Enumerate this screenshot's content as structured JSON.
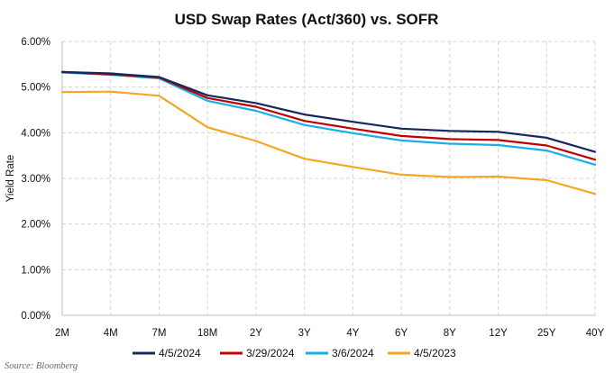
{
  "source_note": "Source: Bloomberg",
  "chart_data": {
    "type": "line",
    "title": "USD Swap Rates (Act/360) vs. SOFR",
    "xlabel": "",
    "ylabel": "Yield Rate",
    "categories": [
      "2M",
      "4M",
      "7M",
      "18M",
      "2Y",
      "3Y",
      "4Y",
      "6Y",
      "8Y",
      "12Y",
      "25Y",
      "40Y"
    ],
    "ylim": [
      0,
      6
    ],
    "yticks": [
      0,
      1,
      2,
      3,
      4,
      5,
      6
    ],
    "ytick_labels": [
      "0.00%",
      "1.00%",
      "2.00%",
      "3.00%",
      "4.00%",
      "5.00%",
      "6.00%"
    ],
    "grid": true,
    "legend_position": "bottom",
    "series": [
      {
        "name": "4/5/2024",
        "color": "#14285a",
        "values": [
          5.33,
          5.3,
          5.22,
          4.82,
          4.65,
          4.4,
          4.24,
          4.09,
          4.04,
          4.02,
          3.89,
          3.58
        ]
      },
      {
        "name": "3/29/2024",
        "color": "#c00000",
        "values": [
          5.33,
          5.28,
          5.21,
          4.76,
          4.57,
          4.26,
          4.09,
          3.93,
          3.86,
          3.84,
          3.72,
          3.41
        ]
      },
      {
        "name": "3/6/2024",
        "color": "#1aaee6",
        "values": [
          5.32,
          5.27,
          5.19,
          4.7,
          4.48,
          4.17,
          3.99,
          3.83,
          3.76,
          3.73,
          3.61,
          3.3
        ]
      },
      {
        "name": "4/5/2023",
        "color": "#f5a623",
        "values": [
          4.89,
          4.9,
          4.81,
          4.12,
          3.82,
          3.43,
          3.25,
          3.08,
          3.03,
          3.04,
          2.96,
          2.66
        ]
      }
    ]
  }
}
